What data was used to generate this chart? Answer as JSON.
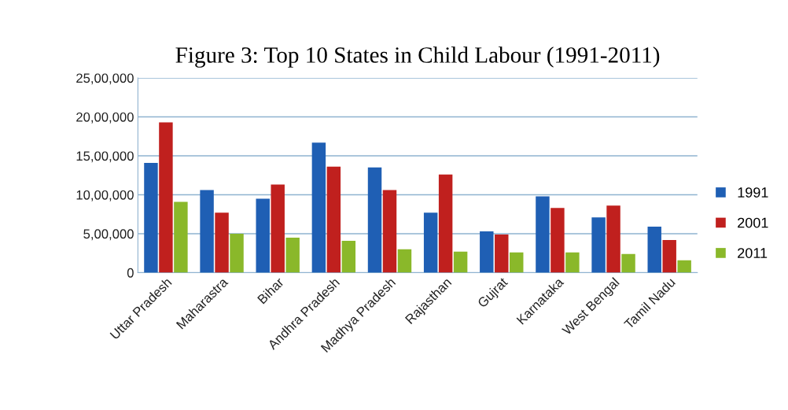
{
  "chart_data": {
    "type": "bar",
    "title": "Figure 3: Top 10 States in Child Labour (1991-2011)",
    "categories": [
      "Uttar Pradesh",
      "Maharastra",
      "Bihar",
      "Andhra Pradesh",
      "Madhya Pradesh",
      "Rajasthan",
      "Gujrat",
      "Karnataka",
      "West Bengal",
      "Tamil Nadu"
    ],
    "series": [
      {
        "name": "1991",
        "color": "#1f5fb4",
        "values": [
          1410000,
          1060000,
          950000,
          1670000,
          1350000,
          770000,
          530000,
          980000,
          710000,
          590000
        ]
      },
      {
        "name": "2001",
        "color": "#c0201e",
        "values": [
          1930000,
          770000,
          1130000,
          1360000,
          1060000,
          1260000,
          490000,
          830000,
          860000,
          420000
        ]
      },
      {
        "name": "2011",
        "color": "#8ab82a",
        "values": [
          910000,
          500000,
          450000,
          410000,
          300000,
          270000,
          260000,
          260000,
          240000,
          160000
        ]
      }
    ],
    "ylim": [
      0,
      2500000
    ],
    "yticks": [
      {
        "value": 0,
        "label": "0"
      },
      {
        "value": 500000,
        "label": "5,00,000"
      },
      {
        "value": 1000000,
        "label": "10,00,000"
      },
      {
        "value": 1500000,
        "label": "15,00,000"
      },
      {
        "value": 2000000,
        "label": "20,00,000"
      },
      {
        "value": 2500000,
        "label": "25,00,000"
      }
    ],
    "grid": "y",
    "legend": "right"
  }
}
